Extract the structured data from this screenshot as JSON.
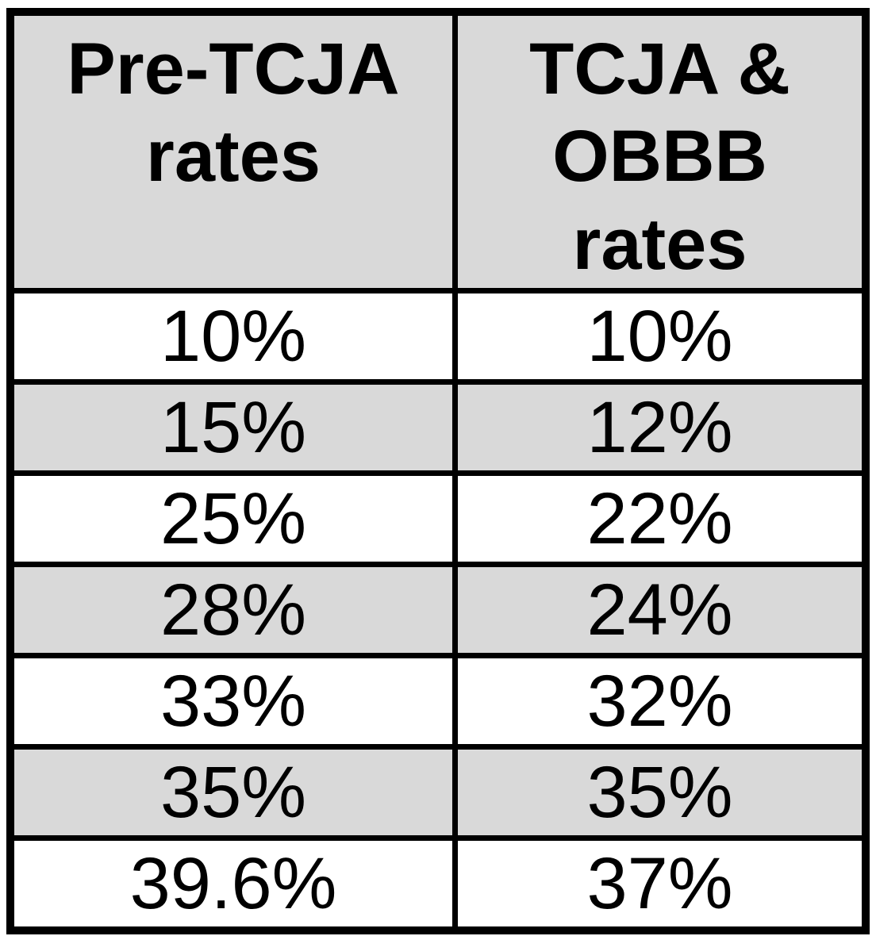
{
  "chart_data": {
    "type": "table",
    "title": "",
    "columns": [
      "Pre-TCJA rates",
      "TCJA & OBBB rates"
    ],
    "rows": [
      [
        "10%",
        "10%"
      ],
      [
        "15%",
        "12%"
      ],
      [
        "25%",
        "22%"
      ],
      [
        "28%",
        "24%"
      ],
      [
        "33%",
        "32%"
      ],
      [
        "35%",
        "35%"
      ],
      [
        "39.6%",
        "37%"
      ]
    ]
  },
  "colors": {
    "header_bg": "#d9d9d9",
    "alt_row_bg": "#d9d9d9",
    "row_bg": "#ffffff",
    "border": "#000000",
    "text": "#000000"
  }
}
